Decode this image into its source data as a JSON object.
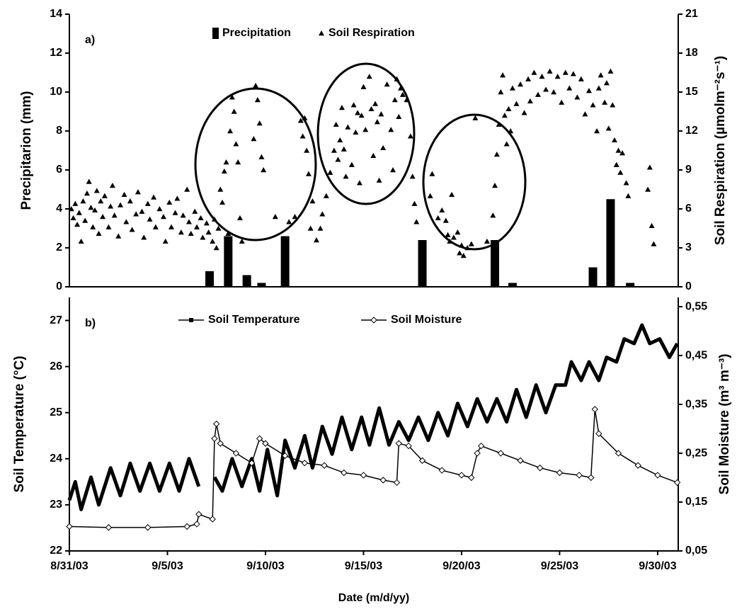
{
  "chart_data": [
    {
      "type": "combo",
      "annotation": "a)",
      "y_label": "Precipitarion (mm)",
      "y2_label": "Soil Respiration (µmolm⁻²s⁻¹)",
      "xlim": [
        0,
        31.05
      ],
      "ylim": [
        0,
        14
      ],
      "yticks": [
        0,
        2,
        4,
        6,
        8,
        10,
        12,
        14
      ],
      "y2lim": [
        0,
        21
      ],
      "y2ticks": [
        0,
        3,
        6,
        9,
        12,
        15,
        18,
        21
      ],
      "series": [
        {
          "name": "Precipitation",
          "type": "bar",
          "color": "#000000",
          "x": [
            7.15,
            8.1,
            9.05,
            9.8,
            11.0,
            18.0,
            21.7,
            22.6,
            26.7,
            27.6,
            28.6
          ],
          "values": [
            0.8,
            2.6,
            0.6,
            0.2,
            2.6,
            2.4,
            2.4,
            0.2,
            1.0,
            4.5,
            0.2
          ]
        },
        {
          "name": "Soil Respiration",
          "type": "scatter",
          "axis": "y2",
          "color": "#000000",
          "x": [
            0.1,
            0.2,
            0.3,
            0.4,
            0.5,
            0.6,
            0.7,
            0.8,
            0.9,
            1.0,
            1.1,
            1.2,
            1.3,
            1.4,
            1.5,
            1.6,
            1.7,
            1.8,
            2.0,
            2.1,
            2.2,
            2.3,
            2.5,
            2.6,
            2.8,
            2.9,
            3.1,
            3.2,
            3.4,
            3.5,
            3.7,
            3.8,
            4.0,
            4.1,
            4.3,
            4.4,
            4.6,
            4.8,
            4.9,
            5.1,
            5.2,
            5.4,
            5.5,
            5.7,
            5.8,
            6.0,
            6.1,
            6.2,
            6.4,
            6.5,
            6.7,
            6.8,
            7.0,
            7.1,
            7.3,
            7.4,
            7.5,
            7.6,
            7.7,
            7.8,
            7.9,
            8.0,
            8.1,
            8.2,
            8.3,
            8.4,
            8.5,
            8.6,
            8.7,
            8.8,
            9.4,
            9.5,
            9.6,
            9.7,
            9.8,
            9.9,
            10.5,
            11.2,
            11.5,
            11.8,
            11.9,
            12.0,
            12.1,
            12.2,
            12.3,
            12.4,
            12.6,
            12.8,
            12.9,
            13.1,
            13.3,
            13.5,
            13.6,
            13.7,
            13.8,
            13.9,
            14.0,
            14.1,
            14.2,
            14.4,
            14.5,
            14.6,
            14.7,
            14.8,
            14.9,
            15.0,
            15.1,
            15.3,
            15.4,
            15.5,
            15.6,
            15.7,
            15.8,
            15.9,
            16.0,
            16.2,
            16.4,
            16.5,
            16.6,
            16.7,
            16.8,
            16.9,
            17.0,
            17.2,
            17.4,
            17.5,
            17.6,
            17.7,
            18.4,
            18.5,
            18.8,
            19.0,
            19.2,
            19.3,
            19.4,
            19.5,
            19.6,
            19.8,
            19.9,
            20.0,
            20.1,
            20.3,
            20.5,
            20.7,
            21.3,
            21.6,
            21.7,
            21.8,
            21.9,
            22.0,
            22.1,
            22.2,
            22.3,
            22.4,
            22.5,
            22.6,
            22.8,
            23.0,
            23.2,
            23.4,
            23.5,
            23.7,
            23.9,
            24.1,
            24.3,
            24.5,
            24.7,
            24.9,
            25.1,
            25.3,
            25.5,
            25.7,
            25.9,
            26.1,
            26.3,
            26.5,
            26.7,
            26.9,
            27.0,
            27.1,
            27.3,
            27.4,
            27.5,
            27.6,
            27.7,
            27.8,
            27.9,
            28.0,
            28.1,
            28.2,
            28.4,
            28.5,
            29.5,
            29.6,
            29.7,
            29.8
          ],
          "values": [
            6.0,
            5.3,
            6.4,
            4.8,
            5.7,
            3.5,
            6.6,
            5.1,
            7.2,
            8.1,
            6.1,
            4.6,
            5.9,
            7.4,
            4.1,
            6.6,
            5.4,
            7.0,
            4.6,
            6.2,
            7.8,
            5.5,
            3.9,
            6.3,
            7.1,
            5.0,
            6.6,
            4.4,
            5.6,
            7.3,
            5.8,
            3.8,
            6.4,
            5.2,
            6.9,
            4.6,
            6.0,
            5.4,
            3.5,
            6.5,
            4.6,
            5.7,
            6.8,
            4.2,
            5.5,
            7.5,
            5.0,
            4.1,
            5.8,
            4.6,
            5.3,
            3.8,
            4.9,
            4.2,
            3.5,
            5.2,
            3.0,
            4.5,
            7.5,
            6.5,
            8.9,
            9.6,
            4.1,
            12.0,
            14.6,
            13.5,
            11.0,
            9.6,
            5.3,
            3.5,
            11.4,
            15.5,
            14.4,
            12.6,
            10.0,
            9.0,
            5.4,
            5.0,
            5.4,
            12.8,
            11.6,
            13.0,
            10.5,
            8.7,
            4.5,
            6.6,
            3.6,
            4.5,
            5.6,
            7.0,
            8.8,
            10.5,
            12.5,
            9.8,
            11.3,
            13.8,
            10.6,
            8.5,
            12.3,
            9.4,
            14.0,
            11.9,
            13.4,
            8.0,
            13.2,
            15.4,
            12.1,
            16.2,
            13.7,
            10.1,
            14.1,
            12.7,
            8.2,
            13.3,
            10.7,
            15.6,
            12.1,
            9.0,
            14.4,
            16.0,
            13.1,
            15.3,
            14.8,
            14.4,
            11.6,
            8.5,
            6.4,
            5.0,
            7.0,
            8.7,
            5.3,
            5.9,
            5.1,
            4.0,
            3.5,
            7.1,
            3.8,
            4.2,
            2.6,
            3.2,
            2.4,
            3.0,
            3.3,
            13.0,
            3.5,
            5.5,
            7.8,
            10.2,
            12.5,
            15.0,
            16.3,
            13.2,
            11.0,
            13.7,
            12.0,
            15.3,
            14.1,
            15.6,
            13.4,
            16.0,
            14.3,
            16.5,
            14.8,
            16.2,
            15.2,
            16.6,
            15.0,
            16.2,
            14.2,
            16.5,
            15.3,
            16.4,
            14.6,
            16.0,
            13.3,
            15.1,
            14.0,
            12.0,
            15.3,
            16.3,
            14.2,
            15.7,
            12.2,
            16.6,
            14.0,
            11.3,
            9.4,
            10.5,
            8.8,
            10.3,
            8.0,
            7.0,
            7.5,
            9.2,
            4.7,
            3.3
          ]
        }
      ]
    },
    {
      "type": "line",
      "annotation": "b)",
      "x_label": "Date (m/d/yy)",
      "y_label": "Soil Temperature (°C)",
      "y2_label": "Soil Moisture (m³ m⁻³)",
      "xlim": [
        0,
        31.05
      ],
      "xticks": [
        {
          "value": 0,
          "label": "8/31/03"
        },
        {
          "value": 5,
          "label": "9/5/03"
        },
        {
          "value": 10,
          "label": "9/10/03"
        },
        {
          "value": 15,
          "label": "9/15/03"
        },
        {
          "value": 20,
          "label": "9/20/03"
        },
        {
          "value": 25,
          "label": "9/25/03"
        },
        {
          "value": 30,
          "label": "9/30/03"
        }
      ],
      "ylim": [
        22,
        27.5
      ],
      "yticks": [
        22,
        23,
        24,
        25,
        26,
        27
      ],
      "y2lim": [
        0.05,
        0.569
      ],
      "y2ticks": [
        {
          "value": 0.05,
          "label": "0,05"
        },
        {
          "value": 0.15,
          "label": "0,15"
        },
        {
          "value": 0.25,
          "label": "0,25"
        },
        {
          "value": 0.35,
          "label": "0,35"
        },
        {
          "value": 0.45,
          "label": "0,45"
        },
        {
          "value": 0.55,
          "label": "0,55"
        }
      ],
      "series": [
        {
          "name": "Soil Temperature",
          "marker": "square",
          "color": "#000000",
          "x": [
            0.0,
            0.3,
            0.6,
            1.1,
            1.5,
            2.1,
            2.6,
            3.1,
            3.6,
            4.1,
            4.6,
            5.1,
            5.6,
            6.1,
            6.6,
            7.0,
            7.4,
            7.8,
            8.3,
            8.8,
            9.3,
            9.7,
            10.1,
            10.6,
            11.0,
            11.5,
            12.0,
            12.4,
            12.9,
            13.4,
            13.9,
            14.4,
            14.9,
            15.3,
            15.8,
            16.3,
            16.8,
            17.3,
            17.8,
            18.3,
            18.8,
            19.3,
            19.8,
            20.3,
            20.8,
            21.3,
            21.8,
            22.3,
            22.8,
            23.3,
            23.8,
            24.3,
            24.8,
            25.3,
            25.6,
            26.1,
            26.5,
            27.0,
            27.4,
            27.9,
            28.3,
            28.8,
            29.2,
            29.6,
            30.1,
            30.6,
            31.0
          ],
          "values": [
            23.1,
            23.5,
            22.9,
            23.6,
            23.0,
            23.8,
            23.2,
            23.9,
            23.3,
            23.9,
            23.3,
            23.9,
            23.3,
            24.0,
            23.4,
            null,
            23.6,
            23.3,
            24.0,
            23.4,
            24.0,
            23.3,
            24.2,
            23.2,
            24.4,
            23.8,
            24.5,
            23.8,
            24.7,
            24.1,
            24.9,
            24.2,
            24.9,
            24.3,
            25.1,
            24.3,
            24.8,
            24.4,
            24.9,
            24.4,
            25.0,
            24.5,
            25.2,
            24.7,
            25.3,
            24.8,
            25.3,
            24.8,
            25.5,
            24.9,
            25.6,
            25.0,
            25.6,
            25.6,
            26.1,
            25.7,
            26.1,
            25.7,
            26.2,
            26.1,
            26.6,
            26.5,
            26.9,
            26.5,
            26.6,
            26.2,
            26.5
          ]
        },
        {
          "name": "Soil Moisture",
          "marker": "diamond",
          "axis": "y2",
          "color": "#000000",
          "x": [
            0,
            2,
            4,
            6,
            6.5,
            6.6,
            7.3,
            7.4,
            7.5,
            7.7,
            8.5,
            9.3,
            9.7,
            10.0,
            11,
            12,
            13,
            14,
            15,
            16,
            16.7,
            16.8,
            17.3,
            18,
            19,
            20,
            20.5,
            20.8,
            21,
            22,
            23,
            24,
            25,
            26,
            26.6,
            26.8,
            27,
            28,
            29,
            30,
            31
          ],
          "values": [
            0.1,
            0.098,
            0.098,
            0.1,
            0.105,
            0.125,
            0.115,
            0.28,
            0.31,
            0.27,
            0.25,
            0.23,
            0.28,
            0.27,
            0.245,
            0.23,
            0.225,
            0.21,
            0.205,
            0.195,
            0.19,
            0.27,
            0.265,
            0.235,
            0.215,
            0.205,
            0.2,
            0.25,
            0.265,
            0.25,
            0.235,
            0.22,
            0.21,
            0.205,
            0.2,
            0.34,
            0.29,
            0.25,
            0.225,
            0.205,
            0.19
          ]
        }
      ]
    }
  ]
}
